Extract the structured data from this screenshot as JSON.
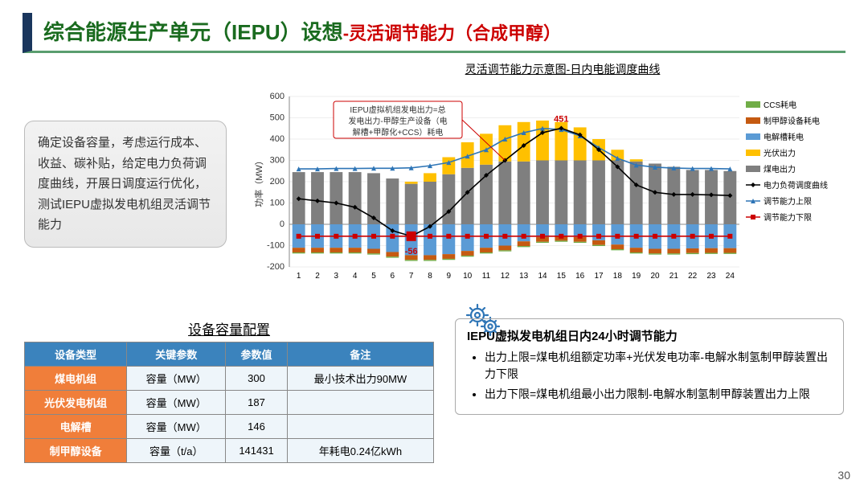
{
  "title": {
    "main": "综合能源生产单元（IEPU）设想",
    "sub": "-灵活调节能力（合成甲醇）"
  },
  "chart": {
    "title": "灵活调节能力示意图-日内电能调度曲线",
    "ylabel": "功率（MW）",
    "ylim": [
      -200,
      600
    ],
    "ytick_step": 100,
    "categories": [
      1,
      2,
      3,
      4,
      5,
      6,
      7,
      8,
      9,
      10,
      11,
      12,
      13,
      14,
      15,
      16,
      17,
      18,
      19,
      20,
      21,
      22,
      23,
      24
    ],
    "coal": [
      245,
      245,
      245,
      245,
      240,
      215,
      190,
      200,
      235,
      265,
      280,
      295,
      295,
      300,
      300,
      300,
      300,
      300,
      295,
      285,
      270,
      255,
      255,
      250
    ],
    "pv": [
      0,
      0,
      0,
      0,
      0,
      0,
      10,
      40,
      80,
      120,
      145,
      170,
      185,
      187,
      180,
      155,
      100,
      50,
      10,
      0,
      0,
      0,
      0,
      0
    ],
    "elec": [
      -110,
      -110,
      -110,
      -110,
      -115,
      -130,
      -145,
      -145,
      -140,
      -125,
      -110,
      -100,
      -80,
      -60,
      -55,
      -60,
      -75,
      -95,
      -110,
      -115,
      -115,
      -113,
      -112,
      -112
    ],
    "meoh": [
      -22,
      -22,
      -22,
      -22,
      -22,
      -22,
      -22,
      -22,
      -22,
      -22,
      -22,
      -22,
      -22,
      -22,
      -22,
      -22,
      -22,
      -22,
      -22,
      -22,
      -22,
      -22,
      -22,
      -22
    ],
    "ccs": [
      -5,
      -5,
      -5,
      -5,
      -5,
      -5,
      -5,
      -5,
      -5,
      -5,
      -5,
      -5,
      -5,
      -5,
      -5,
      -5,
      -5,
      -5,
      -5,
      -5,
      -5,
      -5,
      -5,
      -5
    ],
    "load": [
      120,
      110,
      100,
      80,
      30,
      -30,
      -56,
      -10,
      60,
      150,
      230,
      300,
      370,
      430,
      451,
      420,
      350,
      270,
      185,
      150,
      140,
      140,
      138,
      135
    ],
    "upper": [
      260,
      260,
      262,
      262,
      263,
      263,
      265,
      275,
      290,
      320,
      350,
      400,
      430,
      450,
      445,
      415,
      360,
      310,
      278,
      268,
      264,
      262,
      262,
      260
    ],
    "lower": [
      -56,
      -56,
      -56,
      -56,
      -56,
      -56,
      -56,
      -56,
      -56,
      -56,
      -56,
      -56,
      -56,
      -56,
      -56,
      -56,
      -56,
      -56,
      -56,
      -56,
      -56,
      -56,
      -56,
      -56
    ],
    "callouts": {
      "max": {
        "x": 15,
        "val": "451"
      },
      "min": {
        "x": 7,
        "val": "-56"
      }
    },
    "annot": "IEPU虚拟机组发电出力=总发电出力-甲醇生产设备（电解槽+甲醇化+CCS）耗电",
    "colors": {
      "coal": "#7f7f7f",
      "pv": "#ffc000",
      "elec": "#5b9bd5",
      "meoh": "#c55a11",
      "ccs": "#70ad47",
      "load": "#000",
      "upper": "#2e75b6",
      "lower": "#c00",
      "grid": "#ddd",
      "bg": "#fff"
    },
    "legend": [
      {
        "label": "CCS耗电",
        "type": "bar",
        "color": "#70ad47"
      },
      {
        "label": "制甲醇设备耗电",
        "type": "bar",
        "color": "#c55a11"
      },
      {
        "label": "电解槽耗电",
        "type": "bar",
        "color": "#5b9bd5"
      },
      {
        "label": "光伏出力",
        "type": "bar",
        "color": "#ffc000"
      },
      {
        "label": "煤电出力",
        "type": "bar",
        "color": "#7f7f7f"
      },
      {
        "label": "电力负荷调度曲线",
        "type": "line",
        "color": "#000",
        "marker": "diamond"
      },
      {
        "label": "调节能力上限",
        "type": "line",
        "color": "#2e75b6",
        "marker": "triangle"
      },
      {
        "label": "调节能力下限",
        "type": "line",
        "color": "#c00",
        "marker": "square"
      }
    ]
  },
  "desc": "确定设备容量，考虑运行成本、收益、碳补贴，给定电力负荷调度曲线，开展日调度运行优化，测试IEPU虚拟发电机组灵活调节能力",
  "table": {
    "caption": "设备容量配置",
    "cols": [
      "设备类型",
      "关键参数",
      "参数值",
      "备注"
    ],
    "rows": [
      [
        "煤电机组",
        "容量（MW）",
        "300",
        "最小技术出力90MW"
      ],
      [
        "光伏发电机组",
        "容量（MW）",
        "187",
        ""
      ],
      [
        "电解槽",
        "容量（MW）",
        "146",
        ""
      ],
      [
        "制甲醇设备",
        "容量（t/a）",
        "141431",
        "年耗电0.24亿kWh"
      ]
    ]
  },
  "right": {
    "title": "IEPU虚拟发电机组日内24小时调节能力",
    "items": [
      "出力上限=煤电机组额定功率+光伏发电功率-电解水制氢制甲醇装置出力下限",
      "出力下限=煤电机组最小出力限制-电解水制氢制甲醇装置出力上限"
    ]
  },
  "page": "30"
}
